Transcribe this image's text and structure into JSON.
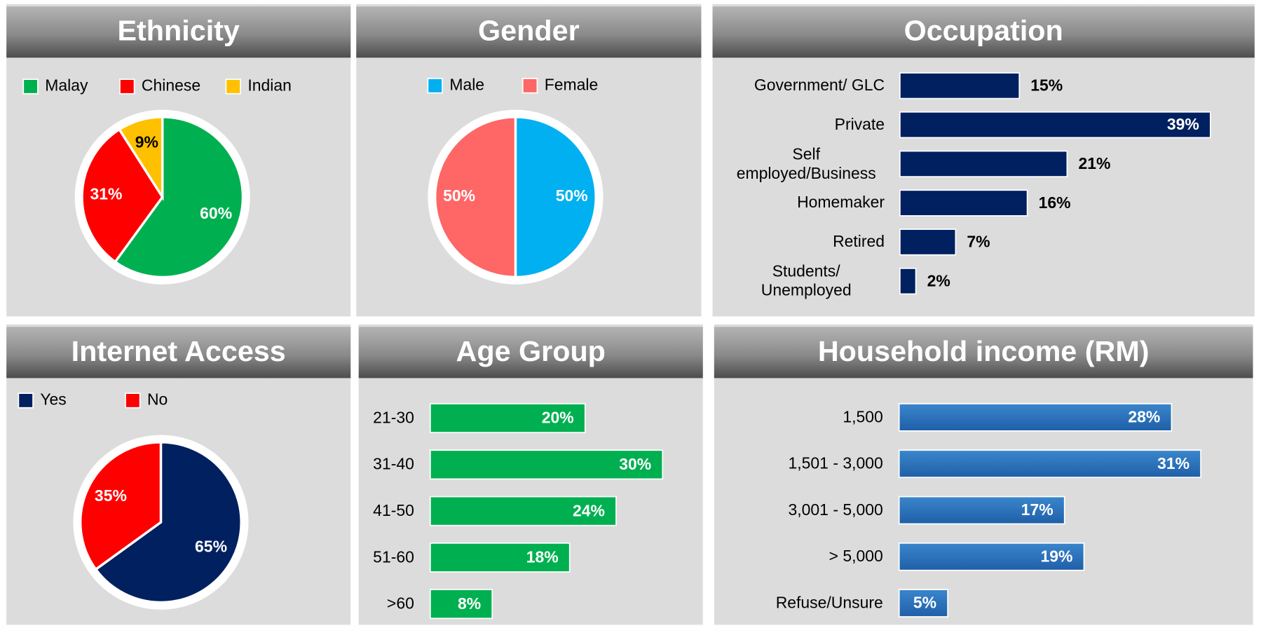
{
  "chart_data": [
    {
      "type": "pie",
      "title": "Ethnicity",
      "categories": [
        "Malay",
        "Chinese",
        "Indian"
      ],
      "values": [
        60,
        31,
        9
      ],
      "value_labels": [
        "60%",
        "31%",
        "9%"
      ],
      "colors": [
        "#00b050",
        "#ff0000",
        "#ffc000"
      ]
    },
    {
      "type": "pie",
      "title": "Gender",
      "categories": [
        "Male",
        "Female"
      ],
      "values": [
        50,
        50
      ],
      "value_labels": [
        "50%",
        "50%"
      ],
      "colors": [
        "#00b0f0",
        "#ff6666"
      ]
    },
    {
      "type": "bar",
      "orientation": "horizontal",
      "title": "Occupation",
      "categories": [
        "Government/ GLC",
        "Private",
        "Self employed/Business",
        "Homemaker",
        "Retired",
        "Students/ Unemployed"
      ],
      "values": [
        15,
        39,
        21,
        16,
        7,
        2
      ],
      "value_labels": [
        "15%",
        "39%",
        "21%",
        "16%",
        "7%",
        "2%"
      ],
      "color": "#002060"
    },
    {
      "type": "pie",
      "title": "Internet Access",
      "categories": [
        "Yes",
        "No"
      ],
      "values": [
        65,
        35
      ],
      "value_labels": [
        "65%",
        "35%"
      ],
      "colors": [
        "#002060",
        "#ff0000"
      ]
    },
    {
      "type": "bar",
      "orientation": "horizontal",
      "title": "Age Group",
      "categories": [
        "21-30",
        "31-40",
        "41-50",
        "51-60",
        ">60"
      ],
      "values": [
        20,
        30,
        24,
        18,
        8
      ],
      "value_labels": [
        "20%",
        "30%",
        "24%",
        "18%",
        "8%"
      ],
      "color": "#00b050"
    },
    {
      "type": "bar",
      "orientation": "horizontal",
      "title": "Household income (RM)",
      "categories": [
        "1,500",
        "1,501 - 3,000",
        "3,001 - 5,000",
        "> 5,000",
        "Refuse/Unsure"
      ],
      "values": [
        28,
        31,
        17,
        19,
        5
      ],
      "value_labels": [
        "28%",
        "31%",
        "17%",
        "19%",
        "5%"
      ],
      "color": "#2e75b6"
    }
  ]
}
